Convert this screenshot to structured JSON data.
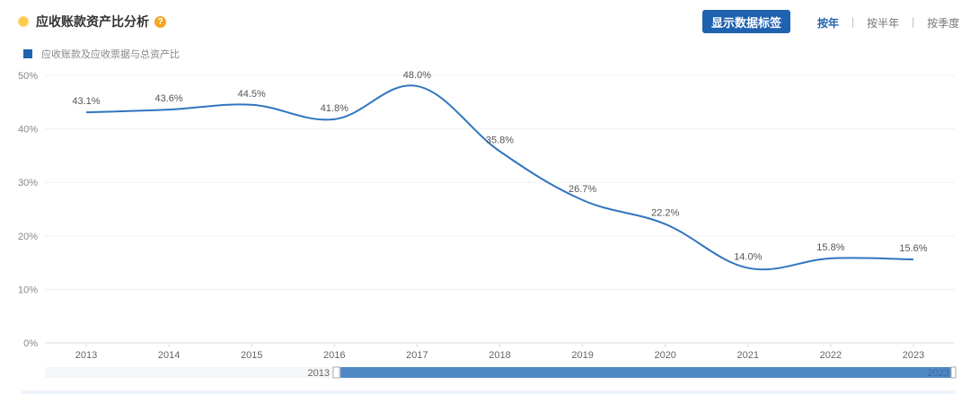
{
  "header": {
    "title": "应收账款资产比分析",
    "help_icon": "?"
  },
  "toolbar": {
    "show_labels": "显示数据标签",
    "periods": [
      "按年",
      "按半年",
      "按季度"
    ],
    "active_period": "按年"
  },
  "colors": {
    "line": "#2f75c0",
    "accent": "#1f62b0"
  },
  "chart_data": {
    "type": "line",
    "title": "应收账款资产比分析",
    "legend": [
      "应收账款及应收票据与总资产比"
    ],
    "legend_placement": "top-left",
    "categories": [
      "2013",
      "2014",
      "2015",
      "2016",
      "2017",
      "2018",
      "2019",
      "2020",
      "2021",
      "2022",
      "2023"
    ],
    "series": [
      {
        "name": "应收账款及应收票据与总资产比",
        "values": [
          43.1,
          43.6,
          44.5,
          41.8,
          48.0,
          35.8,
          26.7,
          22.2,
          14.0,
          15.8,
          15.6
        ]
      }
    ],
    "value_labels": [
      "43.1%",
      "43.6%",
      "44.5%",
      "41.8%",
      "48.0%",
      "35.8%",
      "26.7%",
      "22.2%",
      "14.0%",
      "15.8%",
      "15.6%"
    ],
    "yticks": [
      "0%",
      "10%",
      "20%",
      "30%",
      "40%",
      "50%"
    ],
    "ylim": [
      0,
      50
    ],
    "grid": true,
    "slider": {
      "start": "2013",
      "end": "2023"
    }
  }
}
